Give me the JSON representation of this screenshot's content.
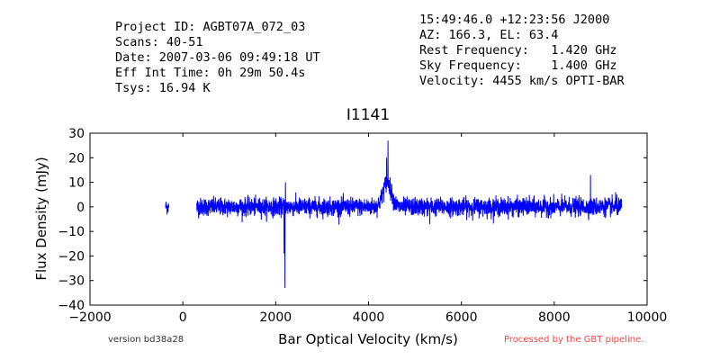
{
  "header": {
    "left": [
      "Project ID: AGBT07A_072_03",
      "Scans: 40-51",
      "Date: 2007-03-06 09:49:18 UT",
      "Eff Int Time: 0h 29m 50.4s",
      "Tsys: 16.94 K"
    ],
    "right": [
      "15:49:46.0 +12:23:56 J2000",
      "AZ: 166.3, EL: 63.4",
      "Rest Frequency:   1.420 GHz",
      "Sky Frequency:    1.400 GHz",
      "Velocity: 4455 km/s OPTI-BAR"
    ]
  },
  "footer": {
    "version": "version bd38a28",
    "processed": "Processed by the GBT pipeline."
  },
  "colors": {
    "series": "#0000ff",
    "processed": "#ff4444",
    "version": "#333333"
  },
  "chart_data": {
    "type": "line",
    "title": "I1141",
    "xlabel": "Bar Optical Velocity (km/s)",
    "ylabel": "Flux Density (mJy)",
    "xlim": [
      -2000,
      10000
    ],
    "ylim": [
      -40,
      30
    ],
    "xticks": [
      -2000,
      0,
      2000,
      4000,
      6000,
      8000,
      10000
    ],
    "yticks": [
      -40,
      -30,
      -20,
      -10,
      0,
      10,
      20,
      30
    ],
    "grid": false,
    "series": [
      {
        "segments": [
          {
            "x_range": [
              -370,
              -300
            ],
            "noise_sigma": 1.5
          },
          {
            "x_range": [
              300,
              9450
            ],
            "noise_sigma": 1.8
          }
        ],
        "features": [
          {
            "type": "profile",
            "x_center": 4400,
            "x_halfwidth": 150,
            "peak": 10
          },
          {
            "type": "spike",
            "x": 4420,
            "value": 27
          },
          {
            "type": "spike",
            "x": 4390,
            "value": 20
          },
          {
            "type": "spike",
            "x": 2200,
            "value": -33
          },
          {
            "type": "spike",
            "x": 2210,
            "value": 10
          },
          {
            "type": "spike",
            "x": 2180,
            "value": -19
          },
          {
            "type": "spike",
            "x": 8780,
            "value": 13
          },
          {
            "type": "spike",
            "x": 9320,
            "value": 6
          },
          {
            "type": "spike",
            "x": 5320,
            "value": -7
          }
        ]
      }
    ]
  }
}
